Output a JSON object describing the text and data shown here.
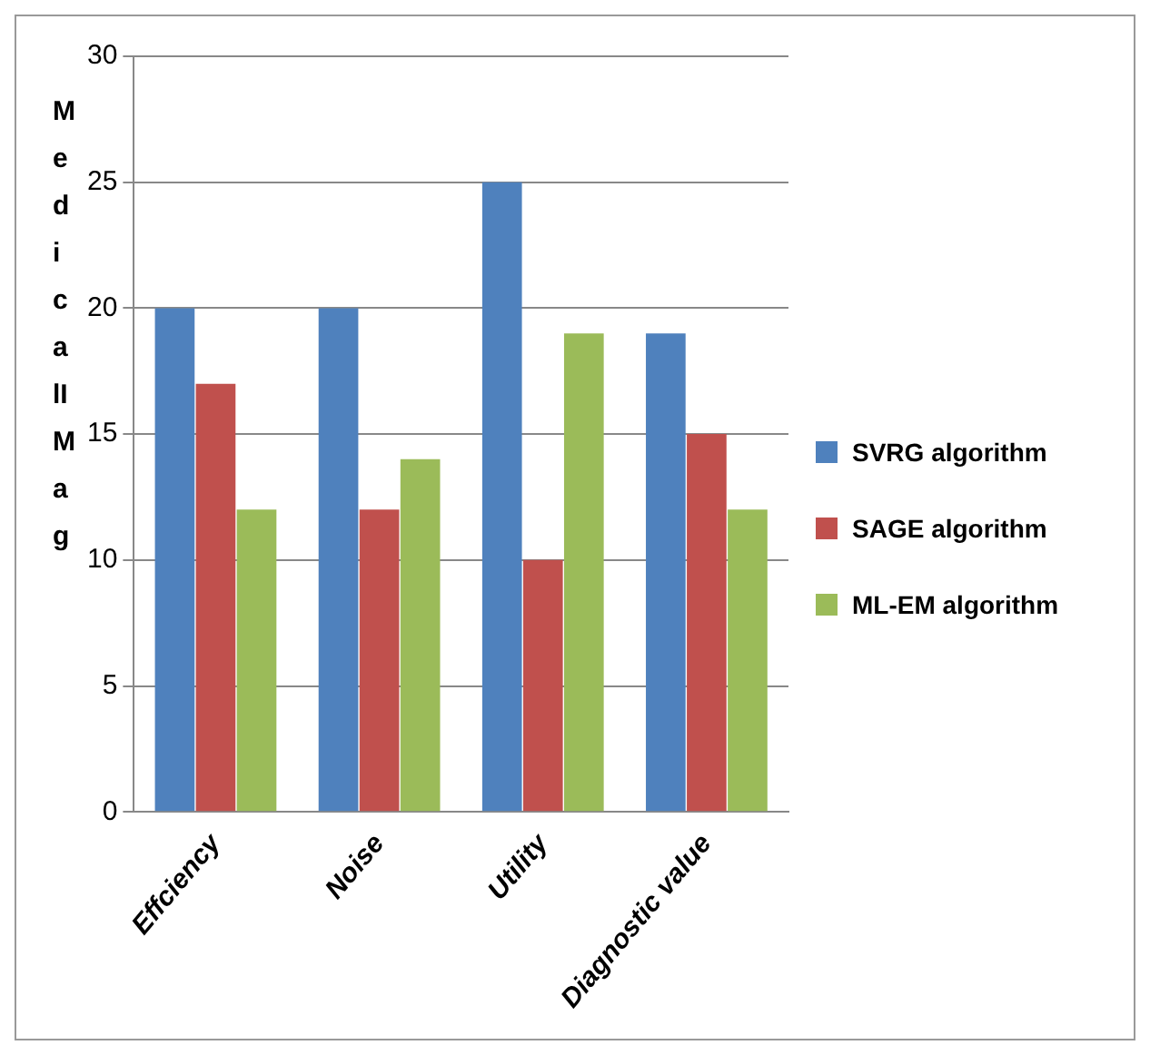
{
  "chart_data": {
    "type": "bar",
    "ylabel": "MedicalIMag",
    "categories": [
      "Effciency",
      "Noise",
      "Utility",
      "Diagnostic value"
    ],
    "series": [
      {
        "name": "SVRG algorithm",
        "color": "#4f81bd",
        "values": [
          20,
          20,
          25,
          19
        ]
      },
      {
        "name": "SAGE algorithm",
        "color": "#c0504d",
        "values": [
          17,
          12,
          10,
          15
        ]
      },
      {
        "name": "ML-EM algorithm",
        "color": "#9bbb59",
        "values": [
          12,
          14,
          19,
          12
        ]
      }
    ],
    "ylim": [
      0,
      30
    ],
    "yticks": [
      0,
      5,
      10,
      15,
      20,
      25,
      30
    ],
    "grid": "y",
    "legend": "right"
  }
}
